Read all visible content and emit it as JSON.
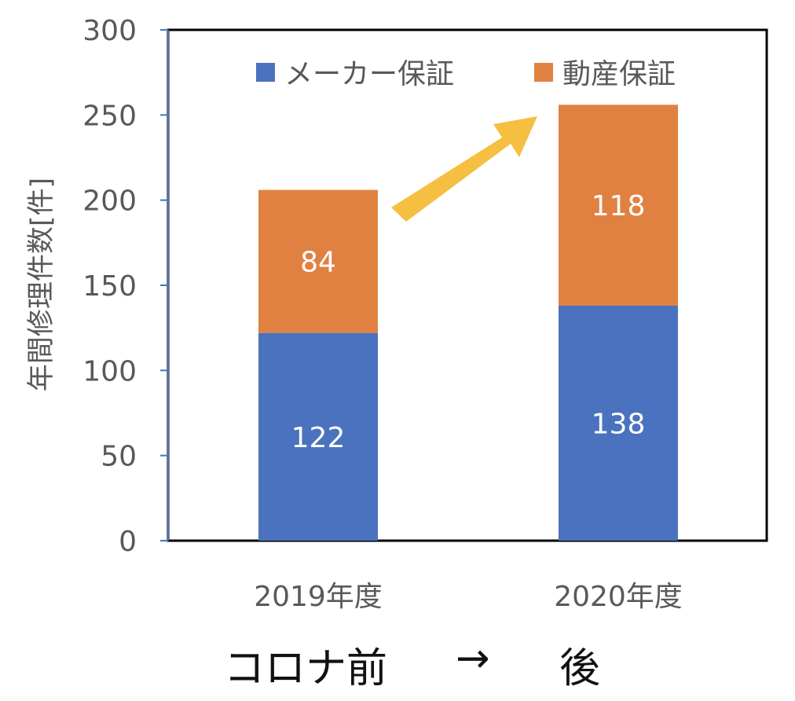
{
  "chart_data": {
    "type": "bar",
    "stacked": true,
    "categories": [
      "2019年度",
      "2020年度"
    ],
    "series": [
      {
        "name": "メーカー保証",
        "values": [
          122,
          138
        ],
        "color": "#4a72be"
      },
      {
        "name": "動産保証",
        "values": [
          84,
          118
        ],
        "color": "#e08142"
      }
    ],
    "ylabel": "年間修理件数[件]",
    "ylim": [
      0,
      300
    ],
    "yticks": [
      0,
      50,
      100,
      150,
      200,
      250,
      300
    ],
    "grid": false,
    "legend": "top"
  },
  "annotation": {
    "arrow_color": "#f5bf42",
    "caption_before": "コロナ前",
    "caption_arrow": "→",
    "caption_after": "後"
  }
}
